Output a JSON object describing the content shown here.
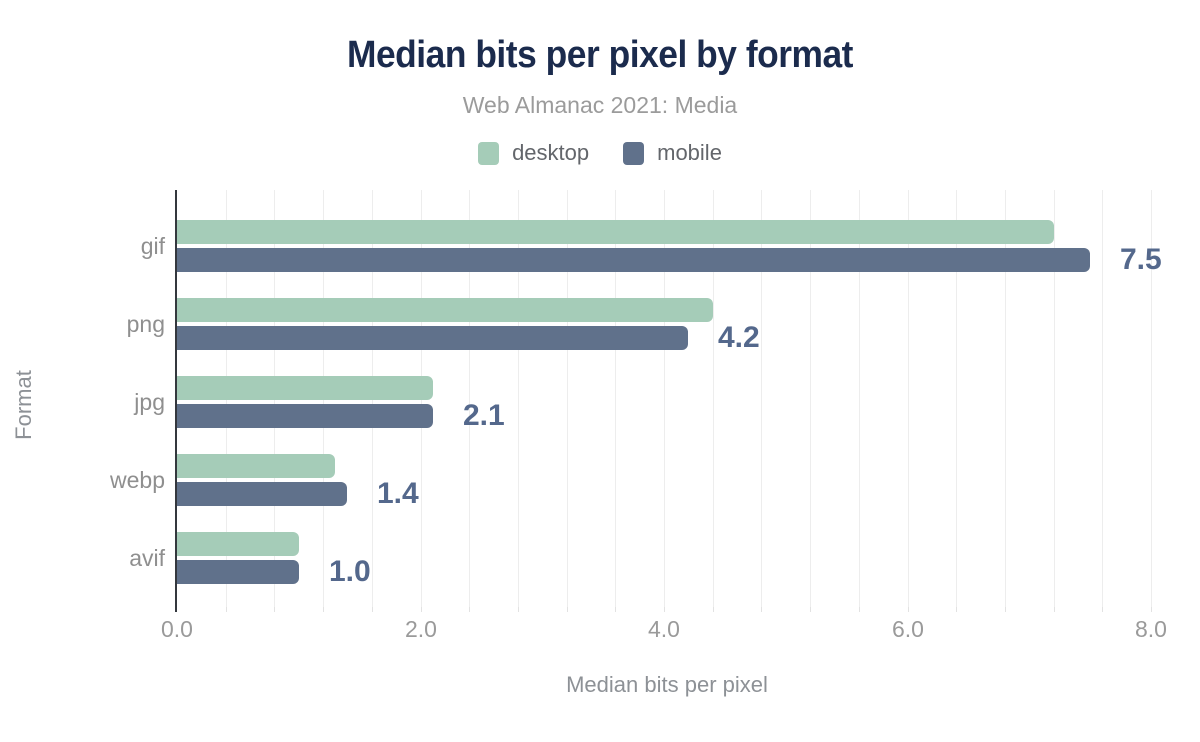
{
  "header": {
    "title": "Median bits per pixel by format",
    "subtitle": "Web Almanac 2021: Media"
  },
  "legend": {
    "items": [
      {
        "label": "desktop",
        "color": "#a5ccb8"
      },
      {
        "label": "mobile",
        "color": "#60718b"
      }
    ]
  },
  "chart_data": {
    "type": "bar",
    "orientation": "horizontal",
    "title": "Median bits per pixel by format",
    "subtitle": "Web Almanac 2021: Media",
    "categories": [
      "gif",
      "png",
      "jpg",
      "webp",
      "avif"
    ],
    "series": [
      {
        "name": "desktop",
        "color": "#a5ccb8",
        "values": [
          7.2,
          4.4,
          2.1,
          1.3,
          1.0
        ]
      },
      {
        "name": "mobile",
        "color": "#60718b",
        "values": [
          7.5,
          4.2,
          2.1,
          1.4,
          1.0
        ]
      }
    ],
    "data_labels": [
      "7.5",
      "4.2",
      "2.1",
      "1.4",
      "1.0"
    ],
    "data_label_series": "mobile",
    "xlabel": "Median bits per pixel",
    "ylabel": "Format",
    "xlim": [
      0,
      8
    ],
    "x_ticks": [
      "0.0",
      "2.0",
      "4.0",
      "6.0",
      "8.0"
    ],
    "minor_grid_interval": 0.4,
    "grid": true,
    "legend_position": "top"
  },
  "colors": {
    "title": "#1b2b4d",
    "subtitle": "#9b9b9b",
    "desktop_bar": "#a5ccb8",
    "mobile_bar": "#60718b",
    "value_label": "#54688c",
    "gridline": "#ededed",
    "axis_line": "#34383e",
    "category_label": "#8f8f8f",
    "tick_label": "#9a9a9a",
    "axis_title": "#8d9196"
  }
}
